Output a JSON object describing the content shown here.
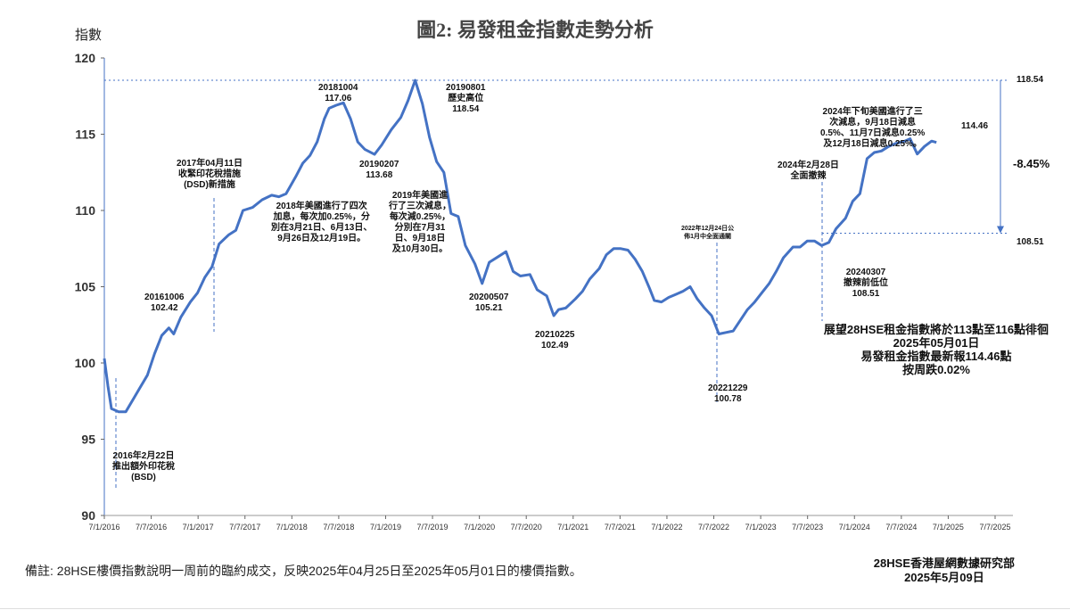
{
  "title": "圖2: 易發租金指數走勢分析",
  "ylabel": "指數",
  "footnote": "備註: 28HSE樓價指數說明一周前的臨約成交，反映2025年04月25日至2025年05月01日的樓價指數。",
  "source_org": "28HSE香港屋網數據研究部",
  "source_date": "2025年5月09日",
  "forecast": {
    "line1": "展望28HSE租金指數將於113點至116點徘徊",
    "line2": "2025年05月01日",
    "line3": "易發租金指數最新報114.46點",
    "line4": "按周跌0.02%"
  },
  "right_values": {
    "high": "118.54",
    "low": "108.51",
    "change": "-8.45%"
  },
  "annotations": {
    "a1": {
      "l1": "2016年2月22日",
      "l2": "推出額外印花稅",
      "l3": "(BSD)"
    },
    "a2": {
      "l1": "20161006",
      "l2": "102.42"
    },
    "a3": {
      "l1": "2017年04月11日",
      "l2": "收緊印花稅措施",
      "l3": "(DSD)新措施"
    },
    "a4": {
      "l1": "2018年美國進行了四次",
      "l2": "加息，每次加0.25%，分",
      "l3": "別在3月21日、6月13日、",
      "l4": "9月26日及12月19日。"
    },
    "a5": {
      "l1": "20181004",
      "l2": "117.06"
    },
    "a6": {
      "l1": "20190207",
      "l2": "113.68"
    },
    "a7": {
      "l1": "2019年美國進",
      "l2": "行了三次減息，",
      "l3": "每次減0.25%，",
      "l4": "分別在7月31",
      "l5": "日、9月18日",
      "l6": "及10月30日。"
    },
    "a8": {
      "l1": "20190801",
      "l2": "歷史高位",
      "l3": "118.54"
    },
    "a9": {
      "l1": "20200507",
      "l2": "105.21"
    },
    "a10": {
      "l1": "20210225",
      "l2": "102.49"
    },
    "a11": {
      "l1": "2022年12月24日公",
      "l2": "佈1月中全面通關"
    },
    "a12": {
      "l1": "20221229",
      "l2": "100.78"
    },
    "a13": {
      "l1": "2024年2月28日",
      "l2": "全面撤辣"
    },
    "a14": {
      "l1": "20240307",
      "l2": "撤辣前低位",
      "l3": "108.51"
    },
    "a15": {
      "l1": "2024年下旬美國進行了三",
      "l2": "次減息，9月18日減息",
      "l3": "0.5%、11月7日減息0.25%",
      "l4": "及12月18日減息0.25%。"
    },
    "a16": {
      "l1": "114.46"
    }
  },
  "colors": {
    "line": "#4472c4",
    "grid": "#cccccc",
    "text": "#111111"
  },
  "chart_data": {
    "type": "line",
    "title": "圖2: 易發租金指數走勢分析",
    "ylabel": "指數",
    "xlabel": "",
    "ylim": [
      90,
      120
    ],
    "yticks": [
      90,
      95,
      100,
      105,
      110,
      115,
      120
    ],
    "xticks": [
      "7/1/2016",
      "7/7/2016",
      "7/1/2017",
      "7/7/2017",
      "7/1/2018",
      "7/7/2018",
      "7/1/2019",
      "7/7/2019",
      "7/1/2020",
      "7/7/2020",
      "7/1/2021",
      "7/7/2021",
      "7/1/2022",
      "7/7/2022",
      "7/1/2023",
      "7/7/2023",
      "7/1/2024",
      "7/7/2024",
      "7/1/2025",
      "7/7/2025"
    ],
    "grid": false,
    "series": [
      {
        "values": [
          [
            0,
            100.3
          ],
          [
            0.15,
            98.5
          ],
          [
            0.3,
            97.0
          ],
          [
            0.6,
            96.8
          ],
          [
            0.9,
            96.8
          ],
          [
            1.2,
            97.6
          ],
          [
            1.5,
            98.4
          ],
          [
            1.8,
            99.2
          ],
          [
            2.1,
            100.6
          ],
          [
            2.4,
            101.8
          ],
          [
            2.7,
            102.3
          ],
          [
            2.9,
            101.9
          ],
          [
            3.2,
            103.0
          ],
          [
            3.6,
            104.0
          ],
          [
            3.9,
            104.6
          ],
          [
            4.2,
            105.6
          ],
          [
            4.5,
            106.3
          ],
          [
            4.8,
            107.8
          ],
          [
            5.2,
            108.4
          ],
          [
            5.5,
            108.7
          ],
          [
            5.8,
            110.0
          ],
          [
            6.2,
            110.2
          ],
          [
            6.6,
            110.7
          ],
          [
            7.0,
            111.0
          ],
          [
            7.3,
            110.9
          ],
          [
            7.6,
            111.1
          ],
          [
            8.0,
            112.2
          ],
          [
            8.3,
            113.1
          ],
          [
            8.6,
            113.6
          ],
          [
            8.9,
            114.5
          ],
          [
            9.2,
            116.0
          ],
          [
            9.4,
            116.7
          ],
          [
            9.7,
            116.9
          ],
          [
            10.0,
            117.06
          ],
          [
            10.3,
            116.0
          ],
          [
            10.6,
            114.5
          ],
          [
            10.9,
            114.0
          ],
          [
            11.3,
            113.68
          ],
          [
            11.6,
            114.3
          ],
          [
            12.0,
            115.3
          ],
          [
            12.4,
            116.1
          ],
          [
            12.7,
            117.2
          ],
          [
            13.0,
            118.54
          ],
          [
            13.3,
            117.0
          ],
          [
            13.6,
            114.8
          ],
          [
            13.9,
            113.2
          ],
          [
            14.2,
            112.5
          ],
          [
            14.5,
            109.8
          ],
          [
            14.8,
            109.6
          ],
          [
            15.1,
            107.7
          ],
          [
            15.5,
            106.5
          ],
          [
            15.8,
            105.21
          ],
          [
            16.1,
            106.6
          ],
          [
            16.5,
            107.0
          ],
          [
            16.8,
            107.3
          ],
          [
            17.1,
            106.0
          ],
          [
            17.4,
            105.7
          ],
          [
            17.8,
            105.8
          ],
          [
            18.1,
            104.8
          ],
          [
            18.5,
            104.4
          ],
          [
            18.8,
            103.1
          ],
          [
            19.0,
            103.5
          ],
          [
            19.3,
            103.6
          ],
          [
            19.7,
            104.2
          ],
          [
            20.0,
            104.7
          ],
          [
            20.3,
            105.5
          ],
          [
            20.7,
            106.2
          ],
          [
            21.0,
            107.1
          ],
          [
            21.3,
            107.5
          ],
          [
            21.6,
            107.5
          ],
          [
            21.9,
            107.4
          ],
          [
            22.2,
            106.8
          ],
          [
            22.5,
            106.0
          ],
          [
            22.8,
            104.9
          ],
          [
            23.0,
            104.1
          ],
          [
            23.3,
            104.0
          ],
          [
            23.6,
            104.3
          ],
          [
            23.9,
            104.5
          ],
          [
            24.2,
            104.7
          ],
          [
            24.5,
            105.0
          ],
          [
            24.8,
            104.2
          ],
          [
            25.1,
            103.6
          ],
          [
            25.4,
            103.1
          ],
          [
            25.7,
            101.9
          ],
          [
            26.0,
            102.0
          ],
          [
            26.3,
            102.1
          ],
          [
            26.6,
            102.8
          ],
          [
            26.9,
            103.5
          ],
          [
            27.2,
            104.0
          ],
          [
            27.5,
            104.6
          ],
          [
            27.8,
            105.2
          ],
          [
            28.1,
            106.0
          ],
          [
            28.4,
            106.9
          ],
          [
            28.8,
            107.6
          ],
          [
            29.1,
            107.6
          ],
          [
            29.4,
            108.0
          ],
          [
            29.7,
            108.0
          ],
          [
            30.0,
            107.7
          ],
          [
            30.3,
            107.9
          ],
          [
            30.6,
            108.8
          ],
          [
            31.0,
            109.5
          ],
          [
            31.3,
            110.6
          ],
          [
            31.6,
            111.1
          ],
          [
            31.9,
            113.4
          ],
          [
            32.2,
            113.8
          ],
          [
            32.5,
            113.9
          ],
          [
            32.8,
            114.2
          ],
          [
            33.1,
            114.4
          ],
          [
            33.4,
            114.5
          ],
          [
            33.7,
            114.7
          ],
          [
            34.0,
            113.7
          ],
          [
            34.3,
            114.2
          ],
          [
            34.6,
            114.55
          ],
          [
            34.8,
            114.46
          ]
        ]
      }
    ]
  }
}
